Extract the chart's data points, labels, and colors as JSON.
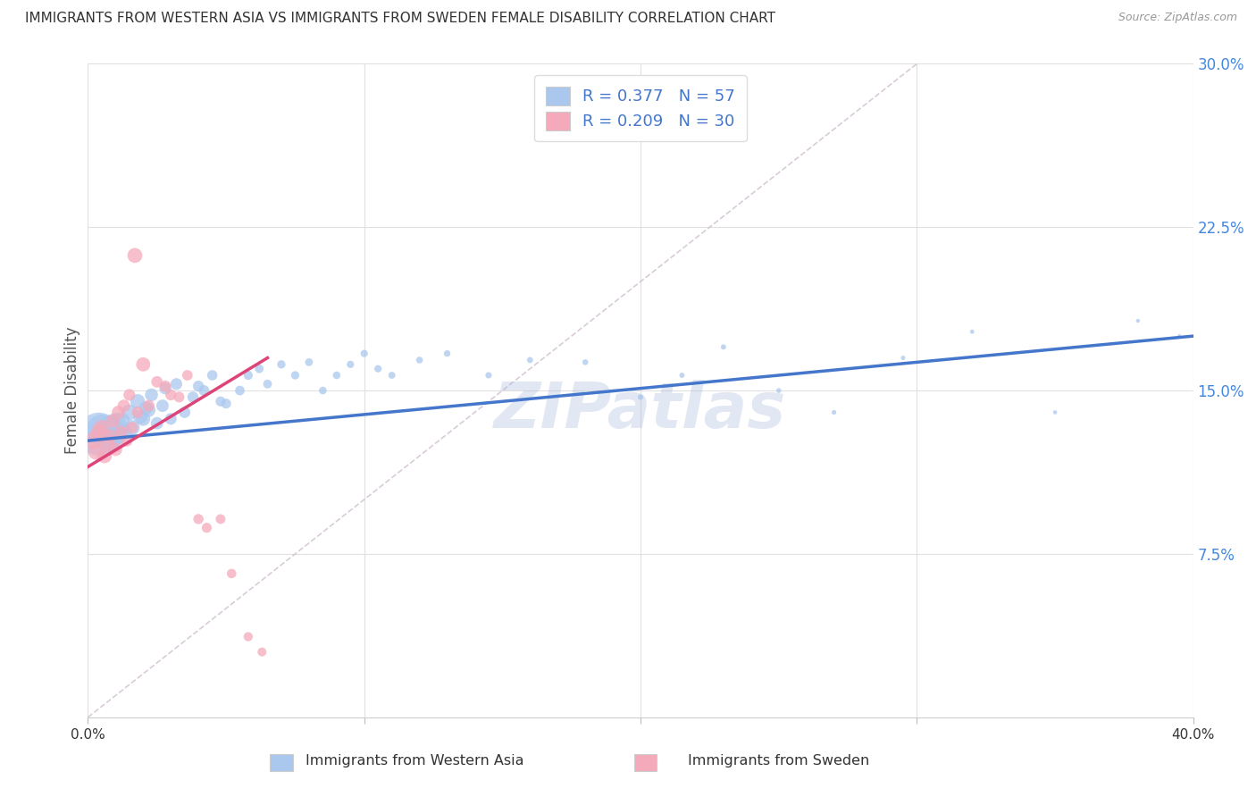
{
  "title": "IMMIGRANTS FROM WESTERN ASIA VS IMMIGRANTS FROM SWEDEN FEMALE DISABILITY CORRELATION CHART",
  "source": "Source: ZipAtlas.com",
  "ylabel": "Female Disability",
  "blue_label": "Immigrants from Western Asia",
  "pink_label": "Immigrants from Sweden",
  "blue_R": "0.377",
  "blue_N": "57",
  "pink_R": "0.209",
  "pink_N": "30",
  "blue_color": "#aac8ee",
  "blue_line_color": "#4477cc",
  "pink_color": "#f5aabb",
  "pink_line_color": "#dd4477",
  "blue_scatter_x": [
    0.004,
    0.005,
    0.007,
    0.008,
    0.009,
    0.01,
    0.011,
    0.012,
    0.013,
    0.015,
    0.016,
    0.018,
    0.019,
    0.02,
    0.021,
    0.022,
    0.023,
    0.025,
    0.027,
    0.028,
    0.03,
    0.032,
    0.035,
    0.038,
    0.04,
    0.042,
    0.045,
    0.048,
    0.05,
    0.055,
    0.058,
    0.062,
    0.065,
    0.07,
    0.075,
    0.08,
    0.085,
    0.09,
    0.095,
    0.1,
    0.11,
    0.12,
    0.13,
    0.145,
    0.16,
    0.18,
    0.2,
    0.215,
    0.23,
    0.25,
    0.27,
    0.295,
    0.32,
    0.35,
    0.38,
    0.395,
    0.105
  ],
  "blue_scatter_y": [
    0.13,
    0.132,
    0.128,
    0.133,
    0.127,
    0.135,
    0.13,
    0.136,
    0.131,
    0.14,
    0.133,
    0.145,
    0.138,
    0.137,
    0.142,
    0.141,
    0.148,
    0.135,
    0.143,
    0.151,
    0.137,
    0.153,
    0.14,
    0.147,
    0.152,
    0.15,
    0.157,
    0.145,
    0.144,
    0.15,
    0.157,
    0.16,
    0.153,
    0.162,
    0.157,
    0.163,
    0.15,
    0.157,
    0.162,
    0.167,
    0.157,
    0.164,
    0.167,
    0.157,
    0.164,
    0.163,
    0.147,
    0.157,
    0.17,
    0.15,
    0.14,
    0.165,
    0.177,
    0.14,
    0.182,
    0.175,
    0.16
  ],
  "blue_scatter_sizes": [
    1200,
    600,
    450,
    360,
    300,
    270,
    240,
    200,
    170,
    160,
    150,
    140,
    130,
    130,
    120,
    120,
    110,
    100,
    100,
    95,
    90,
    90,
    85,
    80,
    80,
    75,
    70,
    65,
    65,
    60,
    55,
    50,
    50,
    45,
    45,
    40,
    38,
    38,
    35,
    35,
    32,
    30,
    28,
    26,
    24,
    22,
    20,
    18,
    18,
    16,
    14,
    13,
    12,
    11,
    10,
    10,
    35
  ],
  "pink_scatter_x": [
    0.002,
    0.003,
    0.004,
    0.005,
    0.006,
    0.007,
    0.008,
    0.009,
    0.01,
    0.011,
    0.012,
    0.013,
    0.014,
    0.015,
    0.016,
    0.017,
    0.018,
    0.02,
    0.022,
    0.025,
    0.028,
    0.03,
    0.033,
    0.036,
    0.04,
    0.043,
    0.048,
    0.052,
    0.058,
    0.063
  ],
  "pink_scatter_y": [
    0.127,
    0.122,
    0.131,
    0.133,
    0.12,
    0.126,
    0.129,
    0.136,
    0.123,
    0.14,
    0.131,
    0.143,
    0.127,
    0.148,
    0.133,
    0.212,
    0.14,
    0.162,
    0.143,
    0.154,
    0.152,
    0.148,
    0.147,
    0.157,
    0.091,
    0.087,
    0.091,
    0.066,
    0.037,
    0.03
  ],
  "pink_scatter_sizes": [
    200,
    175,
    160,
    150,
    140,
    135,
    125,
    120,
    115,
    112,
    105,
    100,
    95,
    90,
    88,
    145,
    88,
    130,
    88,
    85,
    85,
    80,
    75,
    72,
    68,
    65,
    62,
    58,
    55,
    52
  ],
  "blue_line_x": [
    0.0,
    0.4
  ],
  "blue_line_y": [
    0.127,
    0.175
  ],
  "pink_line_x": [
    0.0,
    0.065
  ],
  "pink_line_y": [
    0.115,
    0.165
  ],
  "diag_line_x": [
    0.0,
    0.3
  ],
  "diag_line_y": [
    0.0,
    0.3
  ],
  "xlim": [
    0.0,
    0.4
  ],
  "ylim": [
    0.0,
    0.3
  ],
  "y_ticks_right": [
    0.075,
    0.15,
    0.225,
    0.3
  ],
  "y_tick_labels_right": [
    "7.5%",
    "15.0%",
    "22.5%",
    "30.0%"
  ],
  "background_color": "#ffffff",
  "grid_color": "#e0e0e0",
  "title_color": "#333333",
  "right_axis_color": "#4488dd",
  "watermark": "ZIPatlas"
}
